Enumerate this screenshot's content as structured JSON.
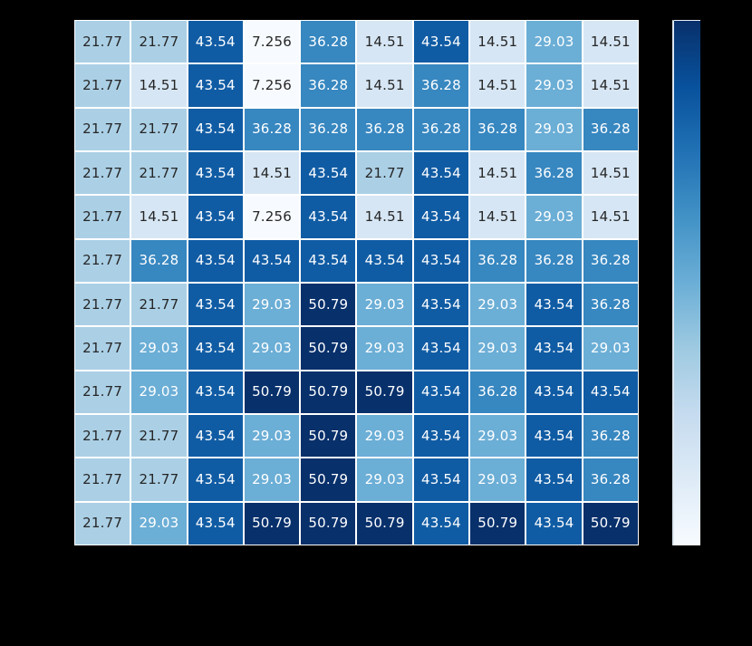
{
  "figure": {
    "background_color": "#000000"
  },
  "chart_data": {
    "type": "heatmap",
    "rows": 12,
    "cols": 10,
    "values": [
      [
        21.77,
        21.77,
        43.54,
        7.256,
        36.28,
        14.51,
        43.54,
        14.51,
        29.03,
        14.51
      ],
      [
        21.77,
        14.51,
        43.54,
        7.256,
        36.28,
        14.51,
        36.28,
        14.51,
        29.03,
        14.51
      ],
      [
        21.77,
        21.77,
        43.54,
        36.28,
        36.28,
        36.28,
        36.28,
        36.28,
        29.03,
        36.28
      ],
      [
        21.77,
        21.77,
        43.54,
        14.51,
        43.54,
        21.77,
        43.54,
        14.51,
        36.28,
        14.51
      ],
      [
        21.77,
        14.51,
        43.54,
        7.256,
        43.54,
        14.51,
        43.54,
        14.51,
        29.03,
        14.51
      ],
      [
        21.77,
        36.28,
        43.54,
        43.54,
        43.54,
        43.54,
        43.54,
        36.28,
        36.28,
        36.28
      ],
      [
        21.77,
        21.77,
        43.54,
        29.03,
        50.79,
        29.03,
        43.54,
        29.03,
        43.54,
        36.28
      ],
      [
        21.77,
        29.03,
        43.54,
        29.03,
        50.79,
        29.03,
        43.54,
        29.03,
        43.54,
        29.03
      ],
      [
        21.77,
        29.03,
        43.54,
        50.79,
        50.79,
        50.79,
        43.54,
        36.28,
        43.54,
        43.54
      ],
      [
        21.77,
        21.77,
        43.54,
        29.03,
        50.79,
        29.03,
        43.54,
        29.03,
        43.54,
        36.28
      ],
      [
        21.77,
        21.77,
        43.54,
        29.03,
        50.79,
        29.03,
        43.54,
        29.03,
        43.54,
        36.28
      ],
      [
        21.77,
        29.03,
        43.54,
        50.79,
        50.79,
        50.79,
        43.54,
        50.79,
        43.54,
        50.79
      ]
    ],
    "vmin": 7.256,
    "vmax": 50.79,
    "cell_label_precision": 4,
    "colormap": "Blues",
    "colormap_stops": [
      "#f7fbff",
      "#deebf7",
      "#c6dbef",
      "#9ecae1",
      "#6baed6",
      "#4292c6",
      "#2171b5",
      "#08519c",
      "#08306b"
    ],
    "grid_line_color": "#ffffff",
    "annotation": {
      "dark_text_color": "#262626",
      "light_text_color": "#ffffff",
      "white_text_threshold": 0.45
    },
    "colorbar": {
      "orientation": "vertical",
      "position": "right",
      "max_at": "top",
      "top_color": "#08306b",
      "bottom_color": "#f7fbff",
      "outline_color": "#dde7f0",
      "tick_labels_visible": false
    },
    "title": "",
    "xlabel": "",
    "ylabel": "",
    "x_tick_labels_visible": false,
    "y_tick_labels_visible": false
  }
}
